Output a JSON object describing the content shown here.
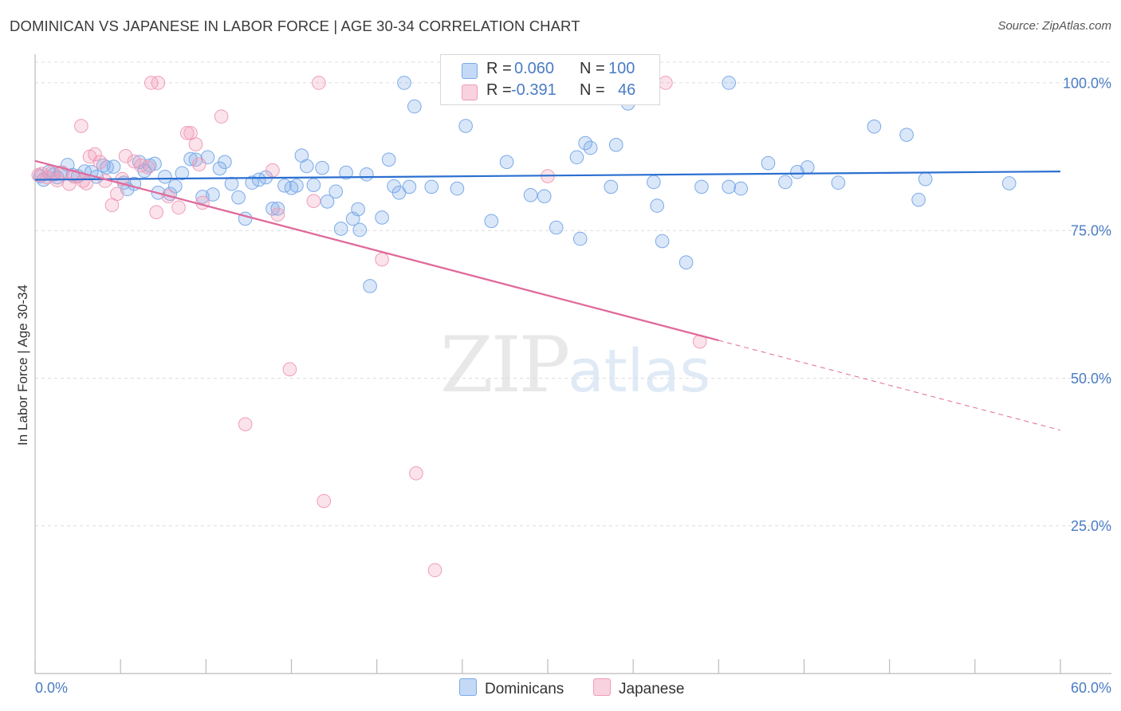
{
  "title": "DOMINICAN VS JAPANESE IN LABOR FORCE | AGE 30-34 CORRELATION CHART",
  "source": "Source: ZipAtlas.com",
  "watermark": {
    "zip": "ZIP",
    "atlas": "atlas"
  },
  "stats": [
    {
      "r_label": "R =",
      "r_value": "0.060",
      "n_label": "N =",
      "n_value": "100",
      "color": "#7aaae8"
    },
    {
      "r_label": "R =",
      "r_value": "-0.391",
      "n_label": "N =",
      "n_value": "46",
      "color": "#f19cb7"
    }
  ],
  "legend": [
    {
      "label": "Dominicans",
      "color": "#7aaae8"
    },
    {
      "label": "Japanese",
      "color": "#f19cb7"
    }
  ],
  "chart_data": {
    "type": "scatter",
    "title": "DOMINICAN VS JAPANESE IN LABOR FORCE | AGE 30-34 CORRELATION CHART",
    "xlabel": "",
    "ylabel": "In Labor Force | Age 30-34",
    "xlim": [
      0,
      60
    ],
    "ylim": [
      0,
      103.5
    ],
    "x_tick_labels": [
      "0.0%",
      "60.0%"
    ],
    "y_ticks": [
      25,
      50,
      75,
      100
    ],
    "y_tick_labels": [
      "25.0%",
      "50.0%",
      "75.0%",
      "100.0%"
    ],
    "grid": "horizontal dashed",
    "legend_position": "bottom-center",
    "series": [
      {
        "name": "Dominicans",
        "color": "#7aaae8",
        "trend": {
          "x1": 0,
          "y1": 83.6,
          "x2": 60,
          "y2": 85.0
        },
        "points": [
          [
            0.3,
            84.2
          ],
          [
            0.5,
            83.6
          ],
          [
            0.8,
            84.9
          ],
          [
            1.1,
            84.5
          ],
          [
            1.3,
            84.0
          ],
          [
            1.5,
            84.8
          ],
          [
            1.9,
            86.1
          ],
          [
            2.2,
            84.4
          ],
          [
            2.5,
            84.2
          ],
          [
            2.9,
            85.0
          ],
          [
            3.3,
            84.9
          ],
          [
            3.6,
            84.1
          ],
          [
            4.0,
            86.0
          ],
          [
            4.2,
            85.7
          ],
          [
            4.6,
            85.8
          ],
          [
            5.2,
            83.1
          ],
          [
            5.4,
            82.0
          ],
          [
            5.8,
            82.9
          ],
          [
            6.1,
            86.6
          ],
          [
            6.4,
            85.1
          ],
          [
            6.7,
            86.0
          ],
          [
            7.0,
            86.3
          ],
          [
            7.2,
            81.4
          ],
          [
            7.6,
            84.1
          ],
          [
            7.9,
            81.2
          ],
          [
            8.2,
            82.5
          ],
          [
            8.6,
            84.7
          ],
          [
            9.1,
            87.1
          ],
          [
            9.4,
            87.0
          ],
          [
            9.8,
            80.7
          ],
          [
            10.1,
            87.4
          ],
          [
            10.4,
            81.1
          ],
          [
            10.8,
            85.5
          ],
          [
            11.1,
            86.6
          ],
          [
            11.5,
            82.9
          ],
          [
            11.9,
            80.6
          ],
          [
            12.3,
            77.0
          ],
          [
            12.7,
            83.1
          ],
          [
            13.1,
            83.6
          ],
          [
            13.5,
            84.0
          ],
          [
            13.9,
            78.7
          ],
          [
            14.2,
            78.7
          ],
          [
            14.6,
            82.6
          ],
          [
            15.0,
            82.2
          ],
          [
            15.3,
            82.6
          ],
          [
            15.6,
            87.7
          ],
          [
            15.9,
            85.9
          ],
          [
            16.3,
            82.7
          ],
          [
            16.8,
            85.6
          ],
          [
            17.1,
            79.9
          ],
          [
            17.6,
            81.6
          ],
          [
            17.9,
            75.3
          ],
          [
            18.2,
            84.8
          ],
          [
            18.6,
            77.0
          ],
          [
            18.9,
            78.6
          ],
          [
            19.0,
            75.1
          ],
          [
            19.4,
            84.5
          ],
          [
            19.6,
            65.6
          ],
          [
            20.3,
            77.2
          ],
          [
            20.7,
            87.0
          ],
          [
            21.0,
            82.5
          ],
          [
            21.3,
            81.4
          ],
          [
            21.6,
            100.0
          ],
          [
            21.9,
            82.4
          ],
          [
            22.2,
            96.0
          ],
          [
            23.2,
            82.4
          ],
          [
            24.1,
            100.0
          ],
          [
            24.7,
            82.1
          ],
          [
            25.2,
            92.7
          ],
          [
            26.7,
            76.6
          ],
          [
            27.6,
            86.6
          ],
          [
            28.1,
            100.0
          ],
          [
            29.0,
            81.0
          ],
          [
            29.8,
            80.8
          ],
          [
            30.5,
            75.5
          ],
          [
            31.7,
            87.4
          ],
          [
            31.9,
            73.6
          ],
          [
            32.2,
            89.8
          ],
          [
            32.5,
            89.0
          ],
          [
            33.7,
            82.4
          ],
          [
            34.0,
            89.5
          ],
          [
            34.7,
            96.5
          ],
          [
            36.2,
            83.2
          ],
          [
            36.4,
            79.2
          ],
          [
            36.7,
            73.2
          ],
          [
            38.1,
            69.6
          ],
          [
            39.0,
            82.4
          ],
          [
            40.6,
            100.0
          ],
          [
            40.6,
            82.4
          ],
          [
            41.3,
            82.1
          ],
          [
            42.9,
            86.4
          ],
          [
            43.9,
            83.2
          ],
          [
            44.6,
            84.9
          ],
          [
            45.2,
            85.7
          ],
          [
            47.0,
            83.1
          ],
          [
            49.1,
            92.6
          ],
          [
            51.0,
            91.2
          ],
          [
            51.7,
            80.2
          ],
          [
            52.1,
            83.7
          ],
          [
            57.0,
            83.0
          ]
        ]
      },
      {
        "name": "Japanese",
        "color": "#f19cb7",
        "trend": {
          "x1": 0,
          "y1": 86.8,
          "x2": 40,
          "y2": 56.4,
          "dash_to_x": 60,
          "dash_to_y": 41.2
        },
        "points": [
          [
            0.4,
            84.6
          ],
          [
            0.7,
            84.0
          ],
          [
            1.0,
            84.8
          ],
          [
            1.3,
            83.5
          ],
          [
            1.6,
            84.8
          ],
          [
            2.0,
            82.9
          ],
          [
            2.7,
            92.7
          ],
          [
            2.8,
            83.4
          ],
          [
            3.2,
            87.5
          ],
          [
            3.5,
            87.9
          ],
          [
            3.8,
            86.6
          ],
          [
            4.1,
            83.4
          ],
          [
            4.5,
            79.3
          ],
          [
            4.8,
            81.2
          ],
          [
            5.1,
            83.7
          ],
          [
            5.3,
            87.6
          ],
          [
            5.8,
            86.7
          ],
          [
            6.2,
            86.0
          ],
          [
            6.6,
            85.7
          ],
          [
            6.8,
            100.0
          ],
          [
            7.1,
            78.1
          ],
          [
            7.2,
            100.0
          ],
          [
            7.8,
            80.8
          ],
          [
            8.4,
            78.9
          ],
          [
            8.9,
            91.5
          ],
          [
            9.1,
            91.5
          ],
          [
            9.4,
            89.6
          ],
          [
            9.8,
            79.7
          ],
          [
            10.9,
            94.3
          ],
          [
            12.3,
            42.2
          ],
          [
            13.9,
            85.2
          ],
          [
            14.2,
            77.7
          ],
          [
            14.9,
            51.5
          ],
          [
            16.3,
            80.0
          ],
          [
            16.6,
            100.0
          ],
          [
            16.9,
            29.2
          ],
          [
            20.3,
            70.1
          ],
          [
            22.3,
            33.9
          ],
          [
            23.4,
            17.5
          ],
          [
            30.0,
            84.2
          ],
          [
            36.9,
            100.0
          ],
          [
            38.9,
            56.2
          ],
          [
            0.2,
            84.4
          ],
          [
            2.3,
            84.1
          ],
          [
            3.0,
            83.0
          ],
          [
            9.6,
            86.2
          ]
        ]
      }
    ]
  }
}
